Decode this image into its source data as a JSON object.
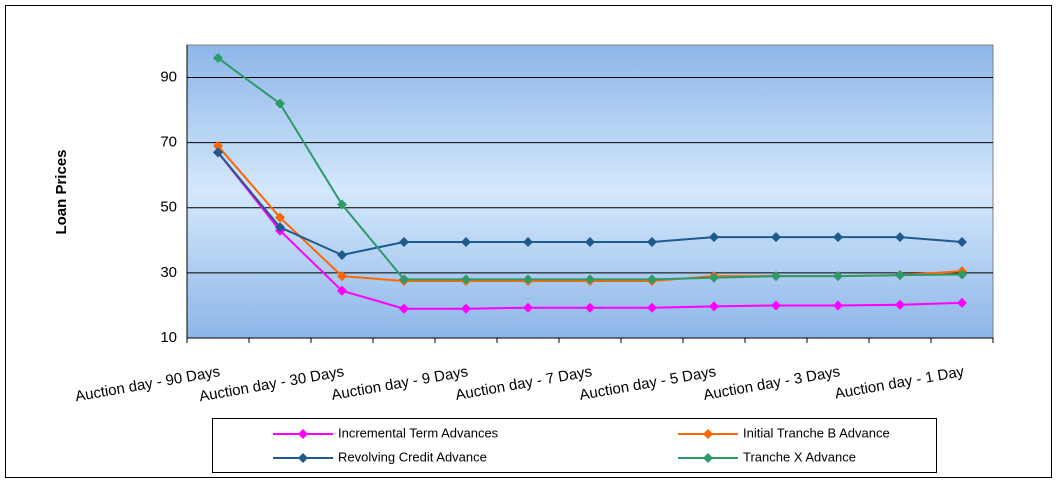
{
  "chart_data": {
    "type": "line",
    "y_label": "Loan Prices",
    "categories": [
      "Auction day - 90 Days",
      null,
      "Auction day - 30 Days",
      null,
      "Auction day - 9 Days",
      null,
      "Auction day - 7 Days",
      null,
      "Auction day - 5 Days",
      null,
      "Auction day - 3 Days",
      null,
      "Auction day - 1 Day"
    ],
    "series": [
      {
        "name": "Incremental Term Advances",
        "color": "#ff00ff",
        "values": [
          67,
          43,
          24.5,
          19,
          19,
          19.3,
          19.3,
          19.3,
          19.7,
          20,
          20,
          20.2,
          20.8
        ]
      },
      {
        "name": "Initial Tranche B Advance",
        "color": "#ff6600",
        "values": [
          69,
          47,
          29,
          27.5,
          27.5,
          27.5,
          27.5,
          27.5,
          29,
          29,
          29,
          29.3,
          30.5
        ]
      },
      {
        "name": "Revolving Credit Advance",
        "color": "#1f5a8c",
        "values": [
          67,
          44,
          35.5,
          39.5,
          39.5,
          39.5,
          39.5,
          39.5,
          41,
          41,
          41,
          41,
          39.5
        ]
      },
      {
        "name": "Tranche X Advance",
        "color": "#2e9a6a",
        "values": [
          96,
          82,
          51,
          28,
          28,
          28,
          28,
          28,
          28.5,
          29,
          29,
          29.3,
          29.5
        ]
      }
    ],
    "ylim": [
      10,
      100
    ],
    "yticks": [
      10,
      30,
      50,
      70,
      90
    ],
    "grid": true
  }
}
